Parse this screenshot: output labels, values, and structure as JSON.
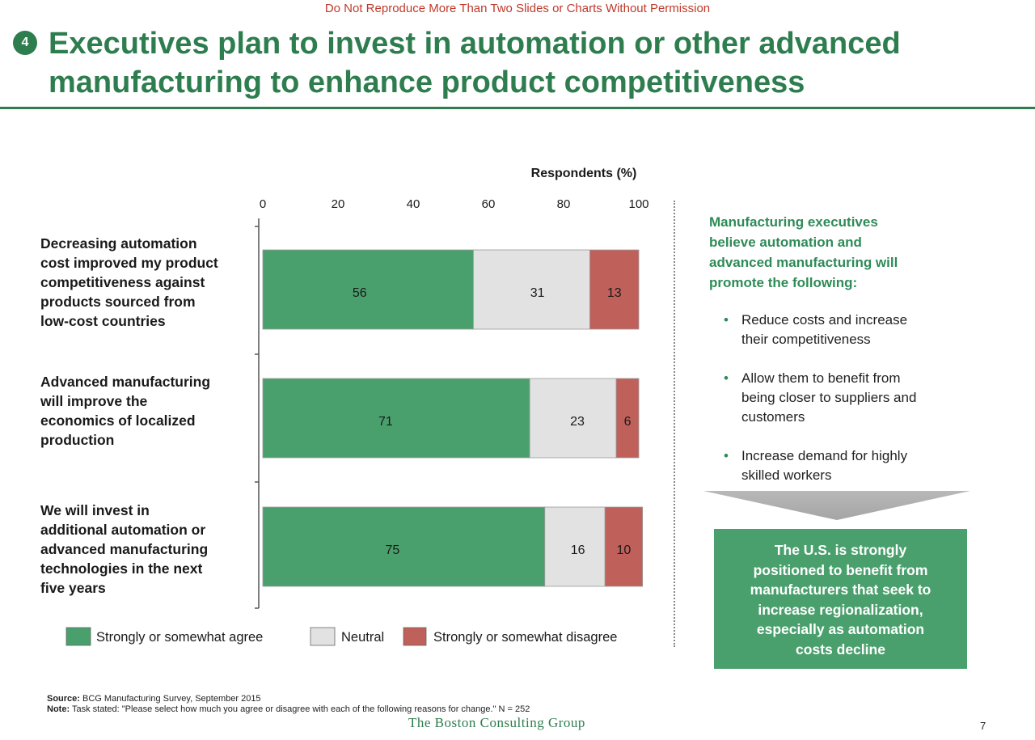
{
  "disclaimer": "Do Not Reproduce More Than Two Slides or Charts Without Permission",
  "slide_badge": "4",
  "title_lines": [
    "Executives plan to invest in automation or other advanced",
    "manufacturing to enhance product competitiveness"
  ],
  "colors": {
    "agree": "#4aa06d",
    "neutral": "#e2e2e2",
    "disagree": "#c0605a",
    "brand_green": "#2e7d4f",
    "accent_green": "#2e8b57"
  },
  "chart_data": {
    "type": "bar",
    "orientation": "horizontal",
    "stacked": true,
    "title": "Respondents (%)",
    "xlim": [
      0,
      100
    ],
    "x_ticks": [
      0,
      20,
      40,
      60,
      80,
      100
    ],
    "categories": [
      [
        "Decreasing automation",
        "cost improved my product",
        "competitiveness against",
        "products sourced from",
        "low-cost countries"
      ],
      [
        "Advanced manufacturing",
        "will improve the",
        "economics of localized",
        "production"
      ],
      [
        "We will invest in",
        "additional automation or",
        "advanced manufacturing",
        "technologies in the next",
        "five years"
      ]
    ],
    "series": [
      {
        "name": "Strongly or somewhat agree",
        "values": [
          56,
          71,
          75
        ],
        "color": "#4aa06d"
      },
      {
        "name": "Neutral",
        "values": [
          31,
          23,
          16
        ],
        "color": "#e2e2e2"
      },
      {
        "name": "Strongly or somewhat disagree",
        "values": [
          13,
          6,
          10
        ],
        "color": "#c0605a"
      }
    ],
    "legend_position": "bottom"
  },
  "sidebar": {
    "title_lines": [
      "Manufacturing executives",
      "believe automation and",
      "advanced manufacturing will",
      "promote the following:"
    ],
    "bullets": [
      [
        "Reduce costs and increase",
        "their competitiveness"
      ],
      [
        "Allow them to benefit from",
        "being closer to suppliers and",
        "customers"
      ],
      [
        "Increase demand for highly",
        "skilled workers"
      ]
    ],
    "callout_lines": [
      "The U.S. is strongly",
      "positioned to benefit from",
      "manufacturers that seek to",
      "increase regionalization,",
      "especially as automation",
      "costs decline"
    ]
  },
  "footer": {
    "source_label": "Source:",
    "source_text": "BCG Manufacturing Survey, September 2015",
    "note_label": "Note:",
    "note_text": "Task stated: \"Please select how much you agree or disagree with each of the following reasons for change.\" N = 252",
    "brand": "The Boston Consulting Group",
    "page_number": "7"
  }
}
